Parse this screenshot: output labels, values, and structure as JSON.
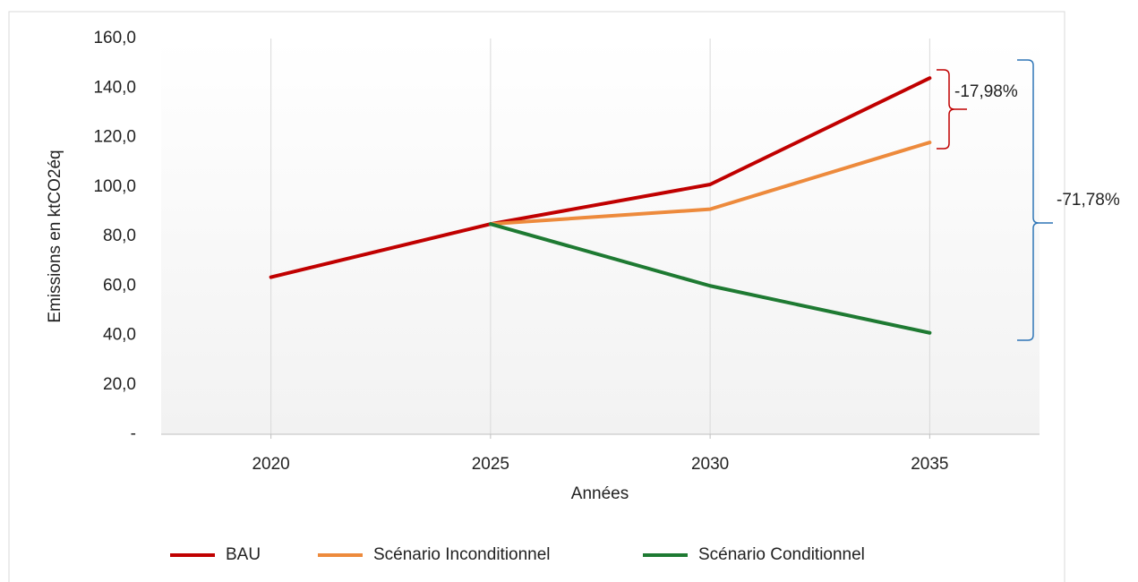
{
  "chart_data": {
    "type": "line",
    "y_label": "Emissions en ktCO2éq",
    "x_label": "Années",
    "categories": [
      "2020",
      "2025",
      "2030",
      "2035"
    ],
    "series": [
      {
        "name": "BAU",
        "color": "#c00000",
        "values": [
          63.5,
          85,
          101,
          144
        ]
      },
      {
        "name": "Scénario Inconditionnel",
        "color": "#ed8a3c",
        "values": [
          null,
          85,
          91,
          118
        ]
      },
      {
        "name": "Scénario Conditionnel",
        "color": "#1e7a32",
        "values": [
          null,
          85,
          60,
          41
        ]
      }
    ],
    "ylim": [
      0,
      160
    ],
    "yticks": [
      {
        "value": 0,
        "label": "-"
      },
      {
        "value": 20,
        "label": "20,0"
      },
      {
        "value": 40,
        "label": "40,0"
      },
      {
        "value": 60,
        "label": "60,0"
      },
      {
        "value": 80,
        "label": "80,0"
      },
      {
        "value": 100,
        "label": "100,0"
      },
      {
        "value": 120,
        "label": "120,0"
      },
      {
        "value": 140,
        "label": "140,0"
      },
      {
        "value": 160,
        "label": "160,0"
      }
    ],
    "annotations": [
      "-17,98%",
      "-71,78%"
    ],
    "grid": true
  }
}
